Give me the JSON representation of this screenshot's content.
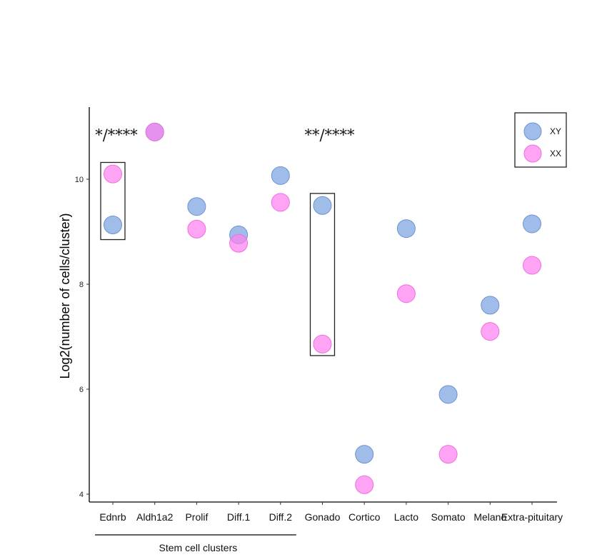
{
  "chart_data": {
    "type": "scatter",
    "ylabel": "Log2(number of cells/cluster)",
    "ylim": [
      3.85,
      11.9
    ],
    "yticks": [
      4,
      6,
      8,
      10
    ],
    "categories": [
      "Ednrb",
      "Aldh1a2",
      "Prolif",
      "Diff.1",
      "Diff.2",
      "Gonado",
      "Cortico",
      "Lacto",
      "Somato",
      "Melano",
      "Extra-pituitary"
    ],
    "series": [
      {
        "name": "XY",
        "color": "#7ba3e0",
        "stroke": "#6b93d0",
        "values": [
          9.13,
          10.9,
          9.48,
          8.94,
          10.07,
          9.5,
          4.76,
          9.06,
          5.9,
          7.6,
          9.15
        ]
      },
      {
        "name": "XX",
        "color": "#ff80f0",
        "stroke": "#ec70e0",
        "values": [
          10.1,
          10.9,
          9.05,
          8.78,
          9.56,
          6.86,
          4.18,
          7.82,
          4.76,
          7.1,
          8.36
        ]
      }
    ],
    "highlight_boxes": [
      {
        "category": "Ednrb",
        "ymin": 8.85,
        "ymax": 10.32
      },
      {
        "category": "Gonado",
        "ymin": 6.64,
        "ymax": 9.73
      }
    ],
    "annotations": [
      {
        "text": "*/****",
        "near": "Ednrb"
      },
      {
        "text": "**/****",
        "near": "Gonado"
      }
    ],
    "group_label": "Stem cell clusters",
    "group_span": [
      "Ednrb",
      "Diff.2"
    ],
    "legend": {
      "position": "top-right",
      "entries": [
        "XY",
        "XX"
      ]
    },
    "grid": false
  }
}
